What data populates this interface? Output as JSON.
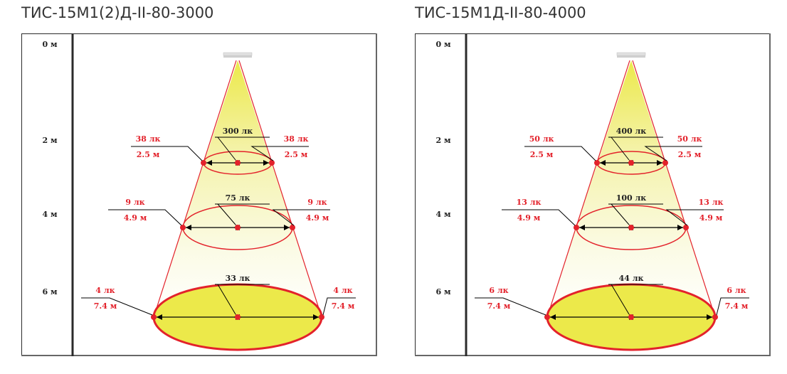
{
  "panels": [
    {
      "title": "ТИС-15М1(2)Д-II-80-3000",
      "axis_labels": [
        "0 м",
        "2 м",
        "4 м",
        "6 м"
      ],
      "levels": [
        {
          "center": "300 лк",
          "left_lux": "38 лк",
          "left_dist": "2.5 м",
          "right_lux": "38 лк",
          "right_dist": "2.5 м"
        },
        {
          "center": "75 лк",
          "left_lux": "9 лк",
          "left_dist": "4.9 м",
          "right_lux": "9 лк",
          "right_dist": "4.9 м"
        },
        {
          "center": "33 лк",
          "left_lux": "4 лк",
          "left_dist": "7.4 м",
          "right_lux": "4 лк",
          "right_dist": "7.4 м"
        }
      ]
    },
    {
      "title": "ТИС-15М1Д-II-80-4000",
      "axis_labels": [
        "0 м",
        "2 м",
        "4 м",
        "6 м"
      ],
      "levels": [
        {
          "center": "400 лк",
          "left_lux": "50 лк",
          "left_dist": "2.5 м",
          "right_lux": "50 лк",
          "right_dist": "2.5 м"
        },
        {
          "center": "100 лк",
          "left_lux": "13 лк",
          "left_dist": "4.9 м",
          "right_lux": "13 лк",
          "right_dist": "4.9 м"
        },
        {
          "center": "44 лк",
          "left_lux": "6 лк",
          "left_dist": "7.4 м",
          "right_lux": "6 лк",
          "right_dist": "7.4 м"
        }
      ]
    }
  ],
  "colors": {
    "red": "#e3222b",
    "yellow": "#ece94a",
    "frame": "#2b2b2b",
    "text": "#222222"
  }
}
